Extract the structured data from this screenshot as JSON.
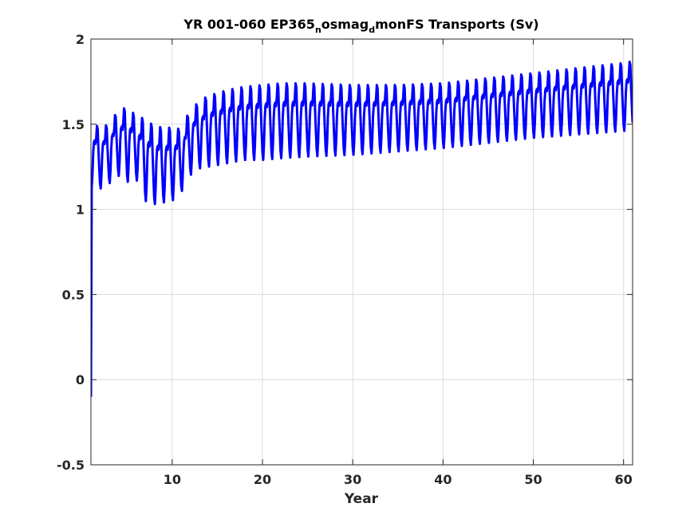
{
  "chart_data": {
    "type": "line",
    "title_parts": [
      {
        "text": "YR 001-060 EP365",
        "sub": false
      },
      {
        "text": "n",
        "sub": true
      },
      {
        "text": "osmag",
        "sub": false
      },
      {
        "text": "d",
        "sub": true
      },
      {
        "text": "monFS Transports (Sv)",
        "sub": false
      }
    ],
    "xlabel": "Year",
    "ylabel": "",
    "xlim": [
      1,
      61
    ],
    "ylim": [
      -0.5,
      2
    ],
    "xticks": [
      10,
      20,
      30,
      40,
      50,
      60
    ],
    "yticks": [
      -0.5,
      0,
      0.5,
      1,
      1.5,
      2
    ],
    "ytick_labels": [
      "-0.5",
      "0",
      "0.5",
      "1",
      "1.5",
      "2"
    ],
    "xtick_labels": [
      "10",
      "20",
      "30",
      "40",
      "50",
      "60"
    ],
    "grid": true,
    "series_color": "#0000ff",
    "start_value": -0.1,
    "annual_envelope": {
      "years": [
        1,
        2,
        3,
        4,
        5,
        6,
        7,
        8,
        9,
        10,
        11,
        12,
        13,
        14,
        15,
        16,
        17,
        18,
        20,
        22,
        25,
        30,
        35,
        40,
        45,
        50,
        55,
        60,
        61
      ],
      "peak": [
        1.51,
        1.48,
        1.5,
        1.58,
        1.6,
        1.55,
        1.53,
        1.49,
        1.48,
        1.48,
        1.47,
        1.59,
        1.63,
        1.67,
        1.68,
        1.7,
        1.71,
        1.72,
        1.73,
        1.74,
        1.74,
        1.73,
        1.73,
        1.74,
        1.77,
        1.8,
        1.83,
        1.86,
        1.87
      ],
      "trough": [
        1.13,
        1.12,
        1.15,
        1.2,
        1.16,
        1.18,
        1.05,
        1.03,
        1.04,
        1.05,
        1.1,
        1.2,
        1.24,
        1.25,
        1.26,
        1.27,
        1.28,
        1.29,
        1.29,
        1.3,
        1.31,
        1.32,
        1.34,
        1.36,
        1.39,
        1.42,
        1.44,
        1.46,
        1.47
      ],
      "shoulder": [
        1.4,
        1.35,
        1.36,
        1.42,
        1.43,
        1.4,
        1.3,
        1.27,
        1.27,
        1.28,
        1.3,
        1.41,
        1.46,
        1.49,
        1.5,
        1.51,
        1.52,
        1.53,
        1.54,
        1.55,
        1.56,
        1.57,
        1.58,
        1.6,
        1.63,
        1.66,
        1.68,
        1.71,
        1.72
      ]
    }
  }
}
